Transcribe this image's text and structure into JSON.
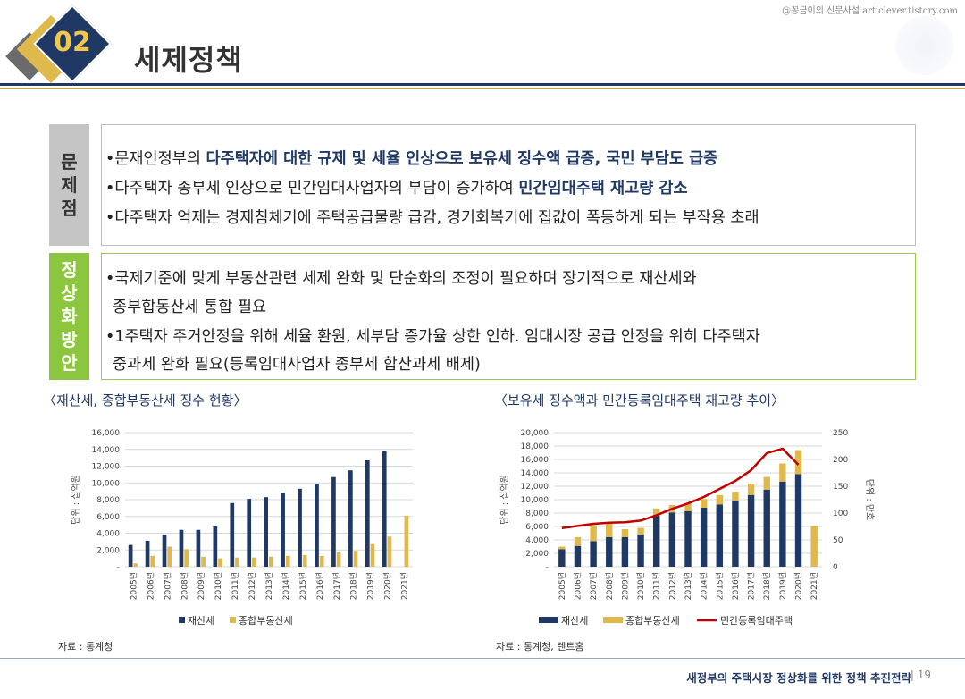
{
  "watermark": "@꽁금이의 신문사설 articlever.tistory.com",
  "header": {
    "number": "02",
    "title": "세제정책"
  },
  "problem": {
    "label_chars": [
      "문",
      "제",
      "점"
    ],
    "bullets": [
      {
        "prefix": "•문재인정부의 ",
        "emphasis": "다주택자에 대한 규제 및 세율 인상으로 보유세 징수액 급증, 국민 부담도 급증",
        "suffix": ""
      },
      {
        "prefix": "•다주택자 종부세 인상으로 민간임대사업자의 부담이 증가하여 ",
        "emphasis": "민간임대주택 재고량 감소",
        "suffix": ""
      },
      {
        "prefix": "•다주택자 억제는 경제침체기에 주택공급물량 급감, 경기회복기에 집값이 폭등하게 되는 부작용 초래",
        "emphasis": "",
        "suffix": ""
      }
    ]
  },
  "solution": {
    "label_chars": [
      "정",
      "상",
      "화",
      "방",
      "안"
    ],
    "lines": [
      "•국제기준에 맞게 부동산관련 세제 완화 및 단순화의 조정이 필요하며 장기적으로 재산세와",
      "  종부합동산세 통합 필요",
      "•1주택자 주거안정을 위해 세율 환원, 세부담 증가율 상한 인하. 임대시장 공급 안정을 위히 다주택자",
      "  중과세 완화 필요(등록임대사업자 종부세 합산과세 배제)"
    ]
  },
  "colors": {
    "navy": "#203864",
    "gold": "#e0b94c",
    "line": "#c00000",
    "green": "#8cc63f"
  },
  "chart_data": [
    {
      "type": "bar",
      "title": "〈재산세, 종합부동산세 징수 현황〉",
      "ylabel": "단위 : 십억원",
      "ylim": [
        0,
        16000
      ],
      "yticks": [
        "-",
        "2,000",
        "4,000",
        "6,000",
        "8,000",
        "10,000",
        "12,000",
        "14,000",
        "16,000"
      ],
      "categories": [
        "2005년",
        "2006년",
        "2007년",
        "2008년",
        "2009년",
        "2010년",
        "2011년",
        "2012년",
        "2013년",
        "2014년",
        "2015년",
        "2016년",
        "2017년",
        "2018년",
        "2019년",
        "2020년",
        "2021년"
      ],
      "series": [
        {
          "name": "재산세",
          "color": "#203864",
          "values": [
            2600,
            3100,
            3800,
            4400,
            4400,
            4800,
            7600,
            8100,
            8300,
            8800,
            9300,
            9900,
            10700,
            11500,
            12700,
            13800,
            null
          ]
        },
        {
          "name": "종합부동산세",
          "color": "#e0b94c",
          "values": [
            400,
            1300,
            2400,
            2100,
            1200,
            1000,
            1100,
            1100,
            1200,
            1300,
            1400,
            1300,
            1700,
            1900,
            2700,
            3600,
            6100
          ]
        }
      ],
      "legend": "bottom",
      "source": "자료 : 통계청"
    },
    {
      "type": "bar",
      "title": "〈보유세 징수액과 민간등록임대주택 재고량 추이〉",
      "ylabel": "단위 : 십억원",
      "ylabel_right": "단위 : 만호",
      "ylim": [
        0,
        20000
      ],
      "ylim_right": [
        0,
        250
      ],
      "yticks": [
        "-",
        "2,000",
        "4,000",
        "6,000",
        "8,000",
        "10,000",
        "12,000",
        "14,000",
        "16,000",
        "18,000",
        "20,000"
      ],
      "yticks_right": [
        "0",
        "50",
        "100",
        "150",
        "200",
        "250"
      ],
      "stacked": true,
      "categories": [
        "2005년",
        "2006년",
        "2007년",
        "2008년",
        "2009년",
        "2010년",
        "2011년",
        "2012년",
        "2013년",
        "2014년",
        "2015년",
        "2016년",
        "2017년",
        "2018년",
        "2019년",
        "2020년",
        "2021년"
      ],
      "series": [
        {
          "name": "재산세",
          "color": "#203864",
          "values": [
            2600,
            3100,
            3800,
            4400,
            4400,
            4800,
            7600,
            8100,
            8300,
            8800,
            9300,
            9900,
            10700,
            11500,
            12700,
            13800,
            null
          ]
        },
        {
          "name": "종합부동산세",
          "color": "#e0b94c",
          "values": [
            400,
            1300,
            2400,
            2100,
            1200,
            1000,
            1100,
            1100,
            1200,
            1300,
            1400,
            1300,
            1700,
            1900,
            2700,
            3600,
            6100
          ]
        },
        {
          "name": "민간등록임대주택",
          "color": "#c00000",
          "type": "line",
          "axis": "right",
          "values": [
            72,
            76,
            80,
            82,
            83,
            86,
            96,
            108,
            118,
            130,
            145,
            160,
            180,
            212,
            220,
            190,
            null
          ]
        }
      ],
      "legend": "bottom",
      "source": "자료 : 통계청, 렌트홈"
    }
  ],
  "footer": {
    "text": "새정부의 주택시장 정상화를 위한 정책 추진전략",
    "page": "| 19"
  }
}
